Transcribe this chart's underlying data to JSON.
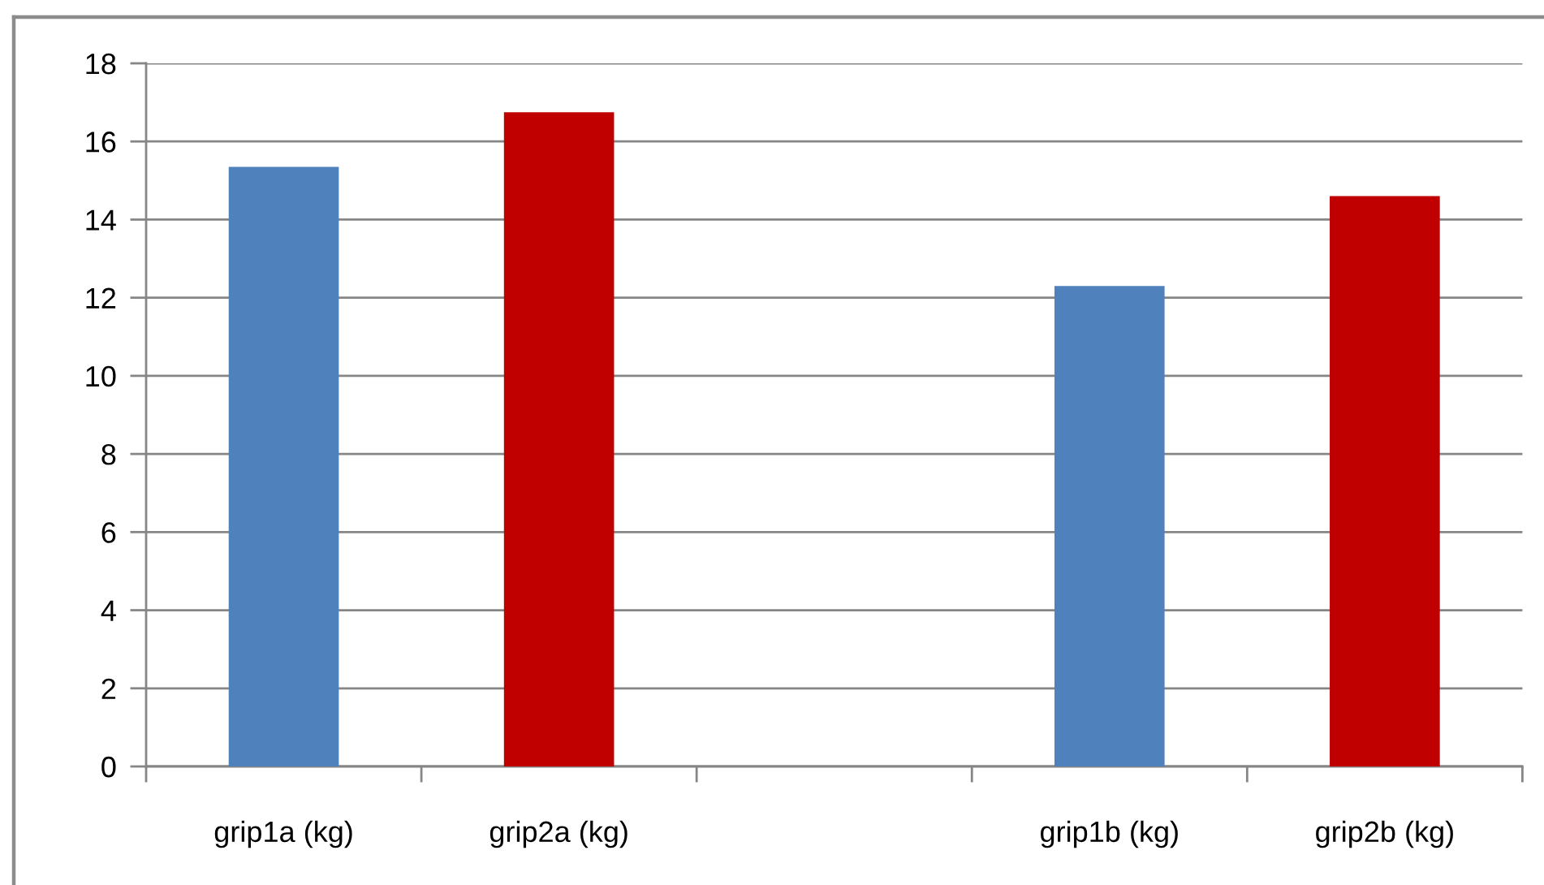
{
  "chart_data": {
    "type": "bar",
    "categories": [
      "grip1a (kg)",
      "grip2a (kg)",
      null,
      "grip1b (kg)",
      "grip2b (kg)"
    ],
    "values": [
      15.35,
      16.75,
      null,
      12.3,
      14.6
    ],
    "colors": [
      "#4f81bd",
      "#c00000",
      null,
      "#4f81bd",
      "#c00000"
    ],
    "ylim": [
      0,
      18
    ],
    "yticks": [
      0,
      2,
      4,
      6,
      8,
      10,
      12,
      14,
      16,
      18
    ],
    "grid": "y"
  }
}
